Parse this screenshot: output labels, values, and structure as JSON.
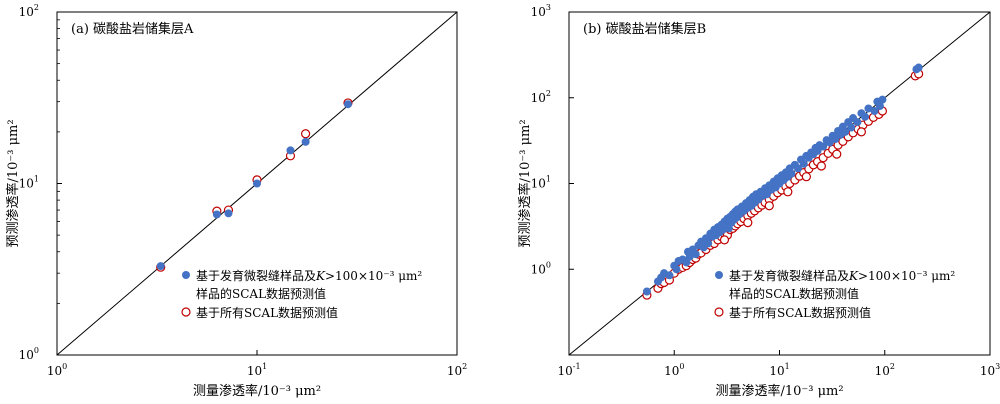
{
  "chart_data": [
    {
      "type": "scatter",
      "panel_title": "(a) 碳酸盐岩储集层A",
      "xlabel": "测量渗透率/10⁻³ μm²",
      "ylabel": "预测渗透率/10⁻³ μm²",
      "xscale": "log",
      "yscale": "log",
      "xlim": [
        1,
        100
      ],
      "ylim": [
        1,
        100
      ],
      "x_ticks": [
        {
          "value": 1,
          "base": "10",
          "exp": "0"
        },
        {
          "value": 10,
          "base": "10",
          "exp": "1"
        },
        {
          "value": 100,
          "base": "10",
          "exp": "2"
        }
      ],
      "y_ticks": [
        {
          "value": 1,
          "base": "10",
          "exp": "0"
        },
        {
          "value": 10,
          "base": "10",
          "exp": "1"
        },
        {
          "value": 100,
          "base": "10",
          "exp": "2"
        }
      ],
      "reference_line": "y=x",
      "legend_position": "bottom-right",
      "series": [
        {
          "legend_lines": [
            "基于发育微裂缝样品及",
            "K",
            ">100×10⁻³ μm²",
            "样品的SCAL数据预测值"
          ],
          "marker": "filled-circle",
          "color": "#4472c4",
          "points": [
            [
              3.3,
              3.3
            ],
            [
              6.3,
              6.6
            ],
            [
              7.2,
              6.7
            ],
            [
              10.0,
              10.0
            ],
            [
              14.7,
              15.6
            ],
            [
              17.5,
              17.5
            ],
            [
              28.5,
              29.0
            ]
          ]
        },
        {
          "legend_lines": [
            "基于所有SCAL数据预测值"
          ],
          "marker": "open-circle",
          "color": "#c00000",
          "points": [
            [
              3.3,
              3.25
            ],
            [
              6.3,
              6.9
            ],
            [
              7.2,
              7.0
            ],
            [
              10.0,
              10.5
            ],
            [
              14.7,
              14.5
            ],
            [
              17.5,
              19.5
            ],
            [
              28.5,
              29.5
            ]
          ]
        }
      ]
    },
    {
      "type": "scatter",
      "panel_title": "(b) 碳酸盐岩储集层B",
      "xlabel": "测量渗透率/10⁻³ μm²",
      "ylabel": "预测渗透率/10⁻³ μm²",
      "xscale": "log",
      "yscale": "log",
      "xlim": [
        0.1,
        1000
      ],
      "ylim": [
        0.1,
        1000
      ],
      "x_ticks": [
        {
          "value": 0.1,
          "base": "10",
          "exp": "-1"
        },
        {
          "value": 1,
          "base": "10",
          "exp": "0"
        },
        {
          "value": 10,
          "base": "10",
          "exp": "1"
        },
        {
          "value": 100,
          "base": "10",
          "exp": "2"
        },
        {
          "value": 1000,
          "base": "10",
          "exp": "3"
        }
      ],
      "y_ticks": [
        {
          "value": 1,
          "base": "10",
          "exp": "0"
        },
        {
          "value": 10,
          "base": "10",
          "exp": "1"
        },
        {
          "value": 100,
          "base": "10",
          "exp": "2"
        },
        {
          "value": 1000,
          "base": "10",
          "exp": "3"
        }
      ],
      "reference_line": "y=x",
      "legend_position": "bottom-right",
      "series": [
        {
          "legend_lines": [
            "基于发育微裂缝样品及",
            "K",
            ">100×10⁻³ μm²",
            "样品的SCAL数据预测值"
          ],
          "marker": "filled-circle",
          "color": "#4472c4",
          "points": [
            [
              0.55,
              0.55
            ],
            [
              0.7,
              0.72
            ],
            [
              0.75,
              0.8
            ],
            [
              0.8,
              0.9
            ],
            [
              0.9,
              0.85
            ],
            [
              1.0,
              1.1
            ],
            [
              1.05,
              1.0
            ],
            [
              1.1,
              1.25
            ],
            [
              1.2,
              1.3
            ],
            [
              1.3,
              1.2
            ],
            [
              1.35,
              1.6
            ],
            [
              1.4,
              1.4
            ],
            [
              1.5,
              1.7
            ],
            [
              1.6,
              1.5
            ],
            [
              1.7,
              1.9
            ],
            [
              1.8,
              2.1
            ],
            [
              1.9,
              1.8
            ],
            [
              2.0,
              2.3
            ],
            [
              2.1,
              2.0
            ],
            [
              2.2,
              2.6
            ],
            [
              2.3,
              2.4
            ],
            [
              2.4,
              2.9
            ],
            [
              2.5,
              2.5
            ],
            [
              2.6,
              3.1
            ],
            [
              2.7,
              2.7
            ],
            [
              2.8,
              3.3
            ],
            [
              2.9,
              2.9
            ],
            [
              3.0,
              3.6
            ],
            [
              3.1,
              3.2
            ],
            [
              3.2,
              3.9
            ],
            [
              3.3,
              3.0
            ],
            [
              3.4,
              4.1
            ],
            [
              3.5,
              3.5
            ],
            [
              3.6,
              4.4
            ],
            [
              3.7,
              3.8
            ],
            [
              3.8,
              4.7
            ],
            [
              3.9,
              4.0
            ],
            [
              4.0,
              5.0
            ],
            [
              4.2,
              4.4
            ],
            [
              4.4,
              5.4
            ],
            [
              4.6,
              4.8
            ],
            [
              4.8,
              5.9
            ],
            [
              5.0,
              5.2
            ],
            [
              5.2,
              6.4
            ],
            [
              5.4,
              5.5
            ],
            [
              5.6,
              7.0
            ],
            [
              5.8,
              6.0
            ],
            [
              6.0,
              7.5
            ],
            [
              6.3,
              6.5
            ],
            [
              6.6,
              8.0
            ],
            [
              7.0,
              7.2
            ],
            [
              7.3,
              8.8
            ],
            [
              7.6,
              7.5
            ],
            [
              8.0,
              9.5
            ],
            [
              8.4,
              8.5
            ],
            [
              8.8,
              10.5
            ],
            [
              9.2,
              9.0
            ],
            [
              9.6,
              11.5
            ],
            [
              10.0,
              10.0
            ],
            [
              10.5,
              12.5
            ],
            [
              11.0,
              11.0
            ],
            [
              11.5,
              13.5
            ],
            [
              12.0,
              12.0
            ],
            [
              12.5,
              15.0
            ],
            [
              13.0,
              13.0
            ],
            [
              14.0,
              16.5
            ],
            [
              15.0,
              15.0
            ],
            [
              16.0,
              19.0
            ],
            [
              17.0,
              17.0
            ],
            [
              18.0,
              21.0
            ],
            [
              19.0,
              20.0
            ],
            [
              20.0,
              23.0
            ],
            [
              21.0,
              22.0
            ],
            [
              22.0,
              26.0
            ],
            [
              23.0,
              24.0
            ],
            [
              24.0,
              28.0
            ],
            [
              26.0,
              27.0
            ],
            [
              28.0,
              32.0
            ],
            [
              30.0,
              30.0
            ],
            [
              32.0,
              36.0
            ],
            [
              34.0,
              33.0
            ],
            [
              36.0,
              41.0
            ],
            [
              38.0,
              37.0
            ],
            [
              40.0,
              46.0
            ],
            [
              42.0,
              40.0
            ],
            [
              45.0,
              52.0
            ],
            [
              48.0,
              45.0
            ],
            [
              50.0,
              58.0
            ],
            [
              55.0,
              52.0
            ],
            [
              60.0,
              66.0
            ],
            [
              65.0,
              60.0
            ],
            [
              70.0,
              75.0
            ],
            [
              80.0,
              70.0
            ],
            [
              85.0,
              90.0
            ],
            [
              90.0,
              80.0
            ],
            [
              95.0,
              95.0
            ],
            [
              200.0,
              215.0
            ],
            [
              210.0,
              225.0
            ]
          ]
        },
        {
          "legend_lines": [
            "基于所有SCAL数据预测值"
          ],
          "marker": "open-circle",
          "color": "#c00000",
          "points": [
            [
              0.55,
              0.5
            ],
            [
              0.7,
              0.6
            ],
            [
              0.75,
              0.68
            ],
            [
              0.8,
              0.7
            ],
            [
              0.9,
              0.75
            ],
            [
              1.0,
              0.9
            ],
            [
              1.1,
              1.0
            ],
            [
              1.2,
              1.05
            ],
            [
              1.3,
              1.1
            ],
            [
              1.4,
              1.2
            ],
            [
              1.5,
              1.3
            ],
            [
              1.6,
              1.35
            ],
            [
              1.7,
              1.5
            ],
            [
              1.8,
              1.55
            ],
            [
              2.0,
              1.7
            ],
            [
              2.2,
              1.9
            ],
            [
              2.4,
              2.0
            ],
            [
              2.6,
              2.2
            ],
            [
              2.8,
              2.4
            ],
            [
              3.0,
              2.6
            ],
            [
              3.2,
              2.5
            ],
            [
              3.4,
              2.9
            ],
            [
              3.6,
              3.0
            ],
            [
              3.8,
              3.2
            ],
            [
              4.0,
              3.4
            ],
            [
              4.3,
              3.6
            ],
            [
              4.6,
              3.9
            ],
            [
              5.0,
              4.2
            ],
            [
              5.4,
              4.5
            ],
            [
              5.8,
              4.8
            ],
            [
              6.3,
              5.2
            ],
            [
              6.8,
              5.6
            ],
            [
              7.3,
              6.0
            ],
            [
              8.0,
              6.5
            ],
            [
              8.8,
              7.1
            ],
            [
              9.6,
              7.8
            ],
            [
              10.5,
              8.4
            ],
            [
              11.5,
              9.2
            ],
            [
              12.5,
              10.0
            ],
            [
              14.0,
              11.0
            ],
            [
              15.5,
              12.2
            ],
            [
              17.0,
              13.4
            ],
            [
              19.0,
              14.8
            ],
            [
              21.0,
              16.5
            ],
            [
              23.0,
              18.0
            ],
            [
              26.0,
              20.0
            ],
            [
              29.0,
              22.5
            ],
            [
              32.0,
              25.0
            ],
            [
              36.0,
              28.0
            ],
            [
              40.0,
              31.0
            ],
            [
              45.0,
              35.0
            ],
            [
              50.0,
              39.0
            ],
            [
              56.0,
              43.0
            ],
            [
              62.0,
              48.0
            ],
            [
              70.0,
              53.0
            ],
            [
              78.0,
              59.0
            ],
            [
              88.0,
              64.0
            ],
            [
              95.0,
              70.0
            ],
            [
              195.0,
              180.0
            ],
            [
              210.0,
              190.0
            ],
            [
              3.0,
              2.2
            ],
            [
              5.0,
              3.5
            ],
            [
              8.0,
              5.5
            ],
            [
              12.0,
              8.0
            ],
            [
              18.0,
              12.0
            ],
            [
              25.0,
              16.0
            ],
            [
              35.0,
              22.0
            ],
            [
              60.0,
              40.0
            ]
          ]
        }
      ]
    }
  ]
}
